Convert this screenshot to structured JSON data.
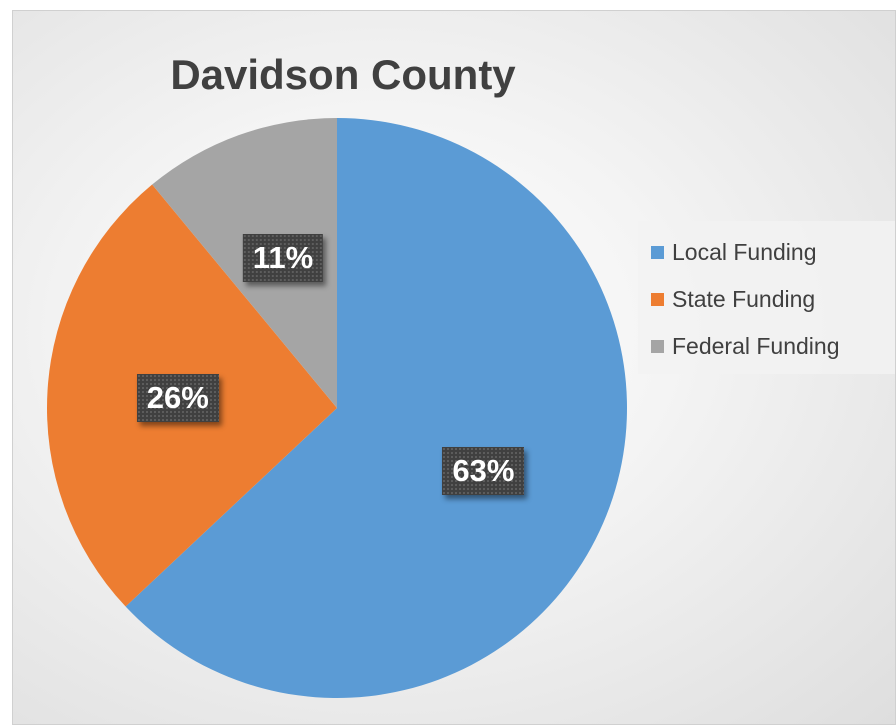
{
  "chart_data": {
    "type": "pie",
    "title": "Davidson County",
    "categories": [
      "Local Funding",
      "State Funding",
      "Federal Funding"
    ],
    "values": [
      63,
      26,
      11
    ],
    "data_labels": [
      "63%",
      "26%",
      "11%"
    ],
    "colors": [
      "#5B9BD5",
      "#ED7D31",
      "#A5A5A5"
    ],
    "legend_position": "right",
    "start_angle": "12 o'clock, clockwise"
  }
}
